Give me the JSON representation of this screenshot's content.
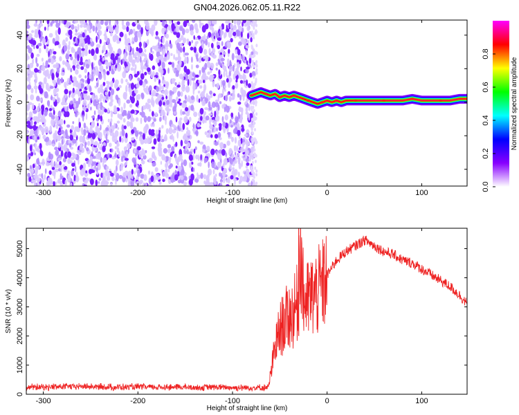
{
  "title": "GN04.2026.062.05.11.R22",
  "chart_data": [
    {
      "type": "heatmap",
      "name": "spectrogram",
      "xlabel": "Height of straight line (km)",
      "ylabel": "Frequency (Hz)",
      "xlim": [
        -318,
        148
      ],
      "ylim": [
        -50,
        49
      ],
      "xticks": [
        -300,
        -200,
        -100,
        0,
        100
      ],
      "yticks": [
        -40,
        -20,
        0,
        20,
        40
      ],
      "noise_region_x": [
        -318,
        -77
      ],
      "signal_track": {
        "x": [
          -80,
          -75,
          -70,
          -65,
          -60,
          -55,
          -50,
          -45,
          -40,
          -35,
          -30,
          -25,
          -20,
          -15,
          -10,
          -5,
          0,
          5,
          10,
          15,
          20,
          30,
          40,
          50,
          60,
          70,
          80,
          90,
          100,
          110,
          120,
          130,
          140,
          148
        ],
        "freq": [
          4,
          5,
          6,
          5,
          4,
          5,
          3,
          4,
          3,
          4,
          3,
          2,
          1,
          0,
          -1,
          0,
          1,
          0,
          1,
          0,
          1,
          1,
          1,
          1,
          1,
          1,
          1,
          2,
          1,
          1,
          1,
          1,
          2,
          2
        ]
      },
      "colorbar": {
        "label": "Normalized spectral amplitude",
        "range": [
          0,
          1
        ],
        "ticks": [
          "0.0",
          "0.2",
          "0.4",
          "0.6",
          "0.8"
        ],
        "colors": [
          "#ffffff",
          "#8800ff",
          "#0000ff",
          "#00ffff",
          "#00ff00",
          "#ffff00",
          "#ff0000",
          "#ff00ff"
        ]
      }
    },
    {
      "type": "line",
      "name": "snr",
      "xlabel": "Height of straight line (km)",
      "ylabel": "SNR (10 * v/v)",
      "xlim": [
        -318,
        148
      ],
      "ylim": [
        0,
        5700
      ],
      "xticks": [
        -300,
        -200,
        -100,
        0,
        100
      ],
      "yticks": [
        0,
        1000,
        2000,
        3000,
        4000,
        5000
      ],
      "color": "#ee2222",
      "series": [
        {
          "x": [
            -318,
            -300,
            -280,
            -260,
            -240,
            -220,
            -200,
            -180,
            -160,
            -140,
            -120,
            -100,
            -90,
            -80,
            -70,
            -62,
            -58,
            -55,
            -50,
            -45,
            -40,
            -35,
            -31,
            -29,
            -25,
            -20,
            -15,
            -10,
            -5,
            0,
            10,
            20,
            30,
            40,
            50,
            60,
            70,
            80,
            90,
            100,
            110,
            120,
            130,
            140,
            148
          ],
          "y": [
            250,
            240,
            260,
            270,
            250,
            240,
            250,
            240,
            250,
            230,
            240,
            230,
            220,
            230,
            220,
            240,
            1000,
            1600,
            2200,
            2500,
            2700,
            2800,
            3200,
            5650,
            3300,
            3200,
            3400,
            3500,
            3700,
            4100,
            4600,
            4900,
            5100,
            5300,
            5100,
            4900,
            4800,
            4600,
            4500,
            4300,
            4100,
            3900,
            3700,
            3400,
            3100
          ]
        }
      ]
    }
  ]
}
